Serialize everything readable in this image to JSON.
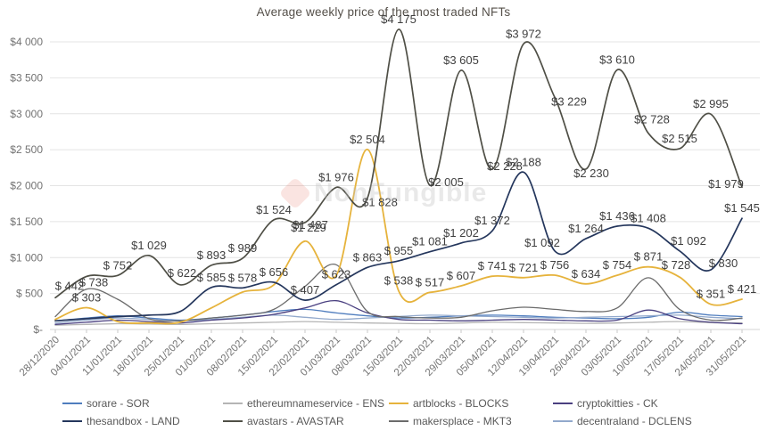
{
  "title": "Average weekly price of the most traded NFTs",
  "watermark": "NonFungible",
  "chart_data": {
    "type": "line",
    "title": "Average weekly price of the most traded NFTs",
    "xlabel": "",
    "ylabel": "",
    "ylim": [
      0,
      4000
    ],
    "grid": "horizontal",
    "legend_position": "bottom",
    "y_ticks": [
      {
        "label": "$4 000",
        "value": 4000
      },
      {
        "label": "$3 500",
        "value": 3500
      },
      {
        "label": "$3 000",
        "value": 3000
      },
      {
        "label": "$2 500",
        "value": 2500
      },
      {
        "label": "$2 000",
        "value": 2000
      },
      {
        "label": "$1 500",
        "value": 1500
      },
      {
        "label": "$1 000",
        "value": 1000
      },
      {
        "label": "$ 500",
        "value": 500
      },
      {
        "label": "$-",
        "value": 0
      }
    ],
    "x": [
      "28/12/2020",
      "04/01/2021",
      "11/01/2021",
      "18/01/2021",
      "25/01/2021",
      "01/02/2021",
      "08/02/2021",
      "15/02/2021",
      "22/02/2021",
      "01/03/2021",
      "08/03/2021",
      "15/03/2021",
      "22/03/2021",
      "29/03/2021",
      "05/04/2021",
      "12/04/2021",
      "19/04/2021",
      "26/04/2021",
      "03/05/2021",
      "10/05/2021",
      "17/05/2021",
      "24/05/2021",
      "31/05/2021"
    ],
    "series": [
      {
        "key": "sorare",
        "name": "sorare - SOR",
        "color": "#4f7dbe",
        "width": 1.3,
        "values": [
          120,
          160,
          190,
          160,
          130,
          160,
          200,
          250,
          280,
          230,
          190,
          160,
          170,
          190,
          200,
          190,
          170,
          160,
          150,
          170,
          240,
          200,
          180
        ],
        "labels": [
          null,
          null,
          null,
          null,
          null,
          null,
          null,
          null,
          null,
          null,
          null,
          null,
          null,
          null,
          null,
          null,
          null,
          null,
          null,
          null,
          null,
          null,
          null
        ]
      },
      {
        "key": "ethereumnameservice",
        "name": "ethereumnameservice - ENS",
        "color": "#b5b5b5",
        "width": 1.3,
        "values": [
          60,
          70,
          80,
          75,
          70,
          80,
          90,
          100,
          110,
          100,
          90,
          85,
          80,
          90,
          100,
          95,
          90,
          85,
          90,
          100,
          110,
          95,
          90
        ],
        "labels": [
          null,
          null,
          null,
          null,
          null,
          null,
          null,
          null,
          null,
          null,
          null,
          null,
          null,
          null,
          null,
          null,
          null,
          null,
          null,
          null,
          null,
          null,
          null
        ]
      },
      {
        "key": "decentraland",
        "name": "decentraland - DCLENS",
        "color": "#92a9cc",
        "width": 1.3,
        "values": [
          90,
          130,
          160,
          140,
          120,
          140,
          170,
          200,
          170,
          140,
          160,
          180,
          200,
          190,
          180,
          170,
          160,
          170,
          180,
          190,
          200,
          170,
          150
        ],
        "labels": [
          null,
          null,
          null,
          null,
          null,
          null,
          null,
          null,
          null,
          null,
          null,
          null,
          null,
          null,
          null,
          null,
          null,
          null,
          null,
          null,
          null,
          null,
          null
        ]
      },
      {
        "key": "cryptokitties",
        "name": "cryptokitties - CK",
        "color": "#4a4080",
        "width": 1.3,
        "values": [
          70,
          100,
          130,
          110,
          90,
          130,
          160,
          210,
          300,
          400,
          230,
          140,
          130,
          120,
          130,
          140,
          130,
          120,
          130,
          270,
          150,
          100,
          80
        ],
        "labels": [
          null,
          null,
          null,
          null,
          null,
          null,
          null,
          null,
          null,
          null,
          null,
          null,
          null,
          null,
          null,
          null,
          null,
          null,
          null,
          null,
          null,
          null,
          null
        ]
      },
      {
        "key": "makersplace",
        "name": "makersplace - MKT3",
        "color": "#6b6b6b",
        "width": 1.3,
        "values": [
          180,
          560,
          420,
          150,
          120,
          160,
          200,
          280,
          600,
          900,
          250,
          180,
          160,
          170,
          260,
          310,
          280,
          250,
          300,
          720,
          280,
          130,
          160
        ],
        "labels": [
          null,
          null,
          null,
          null,
          null,
          null,
          null,
          null,
          null,
          null,
          null,
          null,
          null,
          null,
          null,
          null,
          null,
          null,
          null,
          null,
          null,
          null,
          null
        ]
      },
      {
        "key": "artblocks",
        "name": "artblocks - BLOCKS",
        "color": "#e6b33c",
        "width": 1.8,
        "values": [
          140,
          303,
          110,
          90,
          100,
          300,
          520,
          620,
          1229,
          750,
          2504,
          538,
          517,
          607,
          741,
          721,
          756,
          634,
          754,
          871,
          728,
          351,
          421
        ],
        "labels": [
          null,
          "$ 303",
          null,
          null,
          null,
          null,
          null,
          null,
          "$1 229",
          null,
          "$2 504",
          "$ 538",
          "$ 517",
          "$ 607",
          "$ 741",
          "$ 721",
          "$ 756",
          "$ 634",
          "$ 754",
          "$ 871",
          "$ 728",
          "$ 351",
          "$ 421"
        ]
      },
      {
        "key": "thesandbox",
        "name": "thesandbox - LAND",
        "color": "#24365c",
        "width": 1.7,
        "values": [
          120,
          150,
          180,
          200,
          250,
          585,
          578,
          656,
          407,
          623,
          863,
          955,
          1081,
          1202,
          1372,
          2188,
          1092,
          1264,
          1436,
          1408,
          1092,
          830,
          1545
        ],
        "labels": [
          null,
          null,
          null,
          null,
          null,
          "$ 585",
          "$ 578",
          "$ 656",
          "$ 407",
          "$ 623",
          "$ 863",
          "$ 955",
          "$1 081",
          "$1 202",
          "$1 372",
          "$2 188",
          "$1 092",
          "$1 264",
          "$1 436",
          "$1 408",
          "$1 092",
          "$ 830",
          "$1 545"
        ]
      },
      {
        "key": "avastars",
        "name": "avastars - AVASTAR",
        "color": "#4f4f46",
        "width": 1.7,
        "values": [
          442,
          738,
          752,
          1029,
          622,
          893,
          989,
          1524,
          1487,
          1976,
          1828,
          4175,
          2005,
          3605,
          2228,
          3972,
          3229,
          2230,
          3610,
          2728,
          2515,
          2995,
          1979
        ],
        "labels": [
          "$ 442",
          "$ 738",
          "$ 752",
          "$1 029",
          "$ 622",
          "$ 893",
          "$ 989",
          "$1 524",
          "$1 487",
          "$1 976",
          "$1 828",
          "$4 175",
          "$2 005",
          "$3 605",
          "$2 228",
          "$3 972",
          "$3 229",
          "$2 230",
          "$3 610",
          "$2 728",
          "$2 515",
          "$2 995",
          "$1 979"
        ]
      }
    ],
    "legend_order": [
      "sorare",
      "ethereumnameservice",
      "artblocks",
      "cryptokitties",
      "thesandbox",
      "avastars",
      "makersplace",
      "decentraland"
    ]
  }
}
